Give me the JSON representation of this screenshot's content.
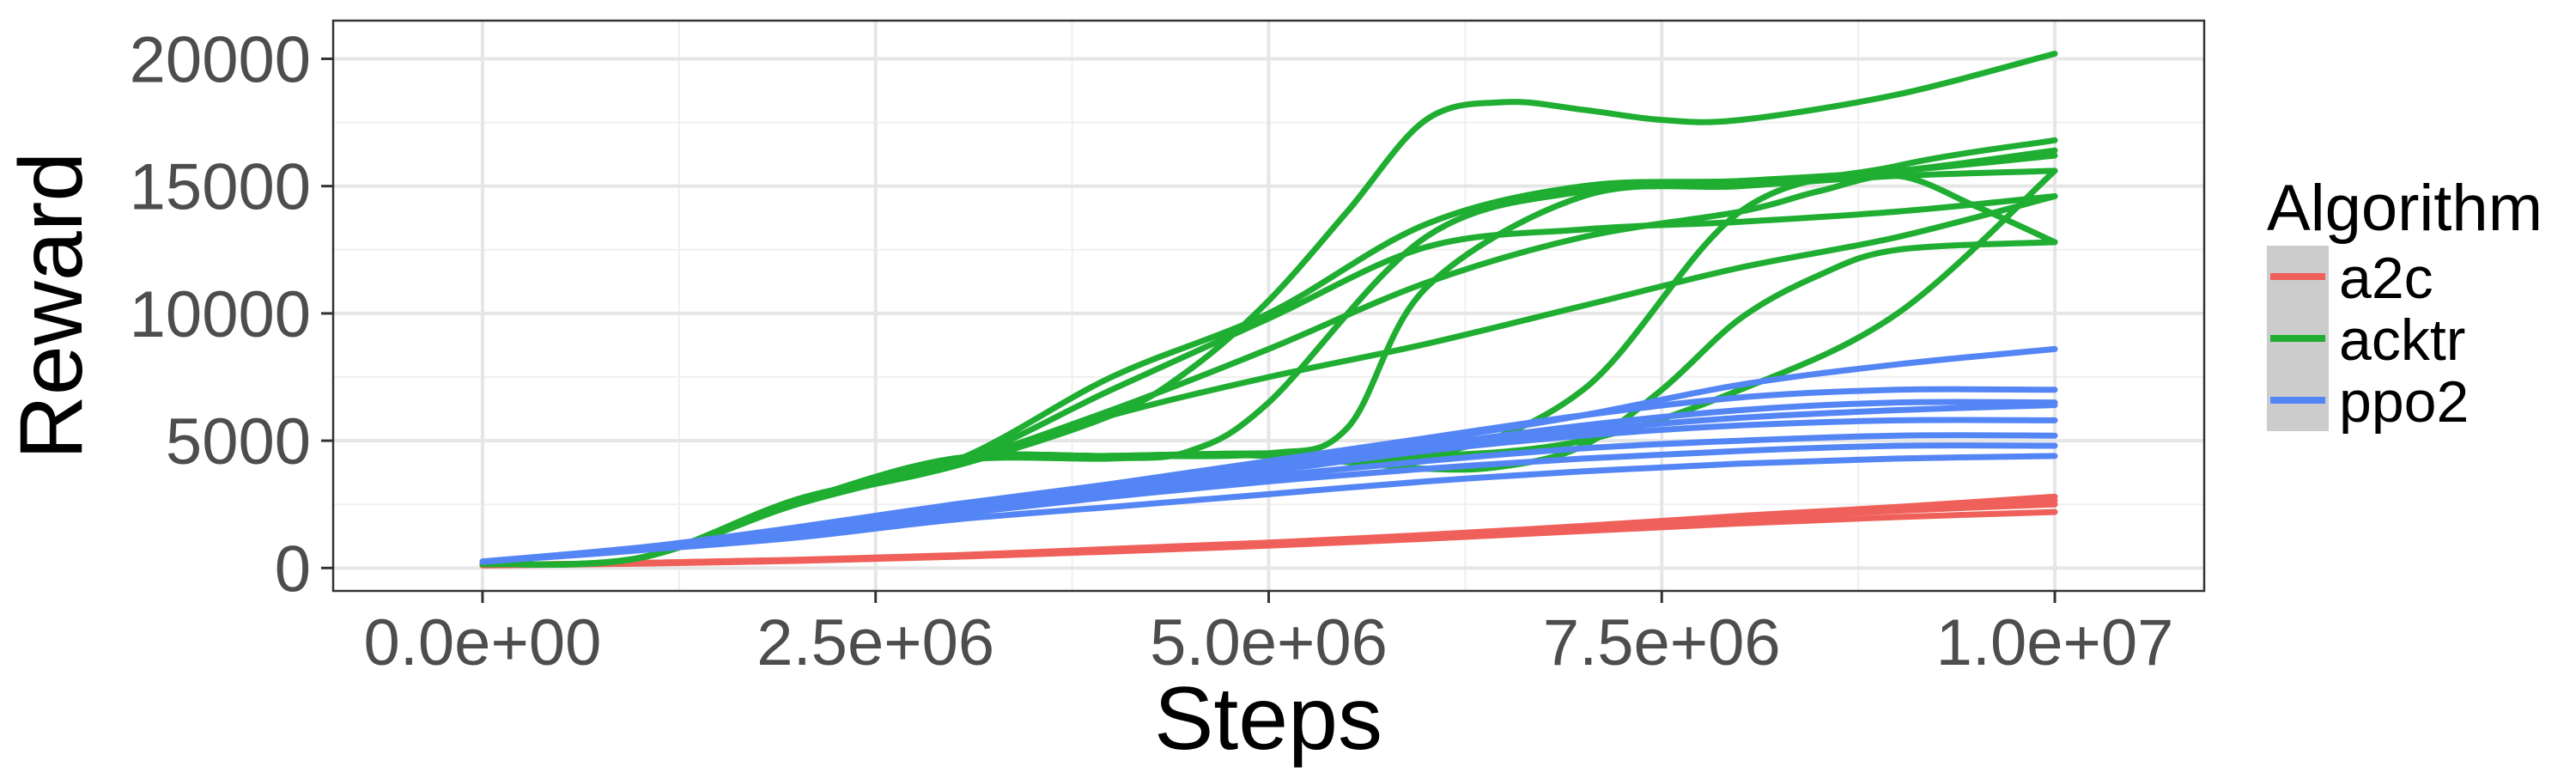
{
  "chart_data": {
    "type": "line",
    "title": "",
    "xlabel": "Steps",
    "ylabel": "Reward",
    "xlim": [
      -950000,
      10950000
    ],
    "ylim": [
      -900,
      21500
    ],
    "x_ticks": [
      0,
      2500000,
      5000000,
      7500000,
      10000000
    ],
    "x_tick_labels": [
      "0.0e+00",
      "2.5e+06",
      "5.0e+06",
      "7.5e+06",
      "1.0e+07"
    ],
    "y_ticks": [
      0,
      5000,
      10000,
      15000,
      20000
    ],
    "y_tick_labels": [
      "0",
      "5000",
      "10000",
      "15000",
      "20000"
    ],
    "grid": true,
    "legend": {
      "title": "Algorithm",
      "position": "right",
      "entries": [
        "a2c",
        "acktr",
        "ppo2"
      ]
    },
    "colors": {
      "a2c": "#f0605a",
      "acktr": "#1fae31",
      "ppo2": "#5485f5"
    },
    "series": [
      {
        "algorithm": "a2c",
        "x": [
          0,
          1000000,
          2000000,
          3000000,
          4000000,
          5000000,
          6000000,
          7000000,
          8000000,
          9000000,
          10000000
        ],
        "y": [
          120,
          200,
          320,
          500,
          750,
          1000,
          1300,
          1650,
          2050,
          2400,
          2800
        ]
      },
      {
        "algorithm": "a2c",
        "x": [
          0,
          1000000,
          2000000,
          3000000,
          4000000,
          5000000,
          6000000,
          7000000,
          8000000,
          9000000,
          10000000
        ],
        "y": [
          100,
          170,
          280,
          440,
          650,
          880,
          1150,
          1450,
          1750,
          2000,
          2200
        ]
      },
      {
        "algorithm": "a2c",
        "x": [
          0,
          1000000,
          2000000,
          3000000,
          4000000,
          5000000,
          6000000,
          7000000,
          8000000,
          9000000,
          10000000
        ],
        "y": [
          110,
          190,
          300,
          470,
          700,
          950,
          1250,
          1600,
          1950,
          2250,
          2500
        ]
      },
      {
        "algorithm": "a2c",
        "x": [
          0,
          1000000,
          2000000,
          3000000,
          4000000,
          5000000,
          6000000,
          7000000,
          8000000,
          9000000,
          10000000
        ],
        "y": [
          115,
          195,
          310,
          480,
          720,
          980,
          1280,
          1620,
          1990,
          2320,
          2650
        ]
      },
      {
        "algorithm": "acktr",
        "x": [
          0,
          1000000,
          2000000,
          3000000,
          4000000,
          4500000,
          5000000,
          5500000,
          6000000,
          6500000,
          7000000,
          7500000,
          8000000,
          9000000,
          10000000
        ],
        "y": [
          150,
          400,
          2600,
          4000,
          6000,
          7800,
          10500,
          14000,
          17600,
          18300,
          18000,
          17600,
          17600,
          18600,
          20200
        ]
      },
      {
        "algorithm": "acktr",
        "x": [
          0,
          1000000,
          2000000,
          3000000,
          4000000,
          5000000,
          6000000,
          7000000,
          8000000,
          9000000,
          10000000
        ],
        "y": [
          150,
          400,
          2700,
          4200,
          7500,
          10000,
          13500,
          15000,
          15200,
          15600,
          16200
        ]
      },
      {
        "algorithm": "acktr",
        "x": [
          0,
          1000000,
          2000000,
          3000000,
          4000000,
          5000000,
          6000000,
          7000000,
          8000000,
          9000000,
          10000000
        ],
        "y": [
          150,
          400,
          2600,
          4100,
          7000,
          9800,
          12600,
          13300,
          13600,
          14000,
          14600
        ]
      },
      {
        "algorithm": "acktr",
        "x": [
          0,
          1000000,
          2000000,
          3000000,
          4000000,
          4500000,
          5000000,
          6000000,
          7000000,
          8000000,
          9000000,
          10000000
        ],
        "y": [
          150,
          400,
          2600,
          4200,
          4300,
          4600,
          6500,
          13000,
          14800,
          15200,
          15600,
          16400
        ]
      },
      {
        "algorithm": "acktr",
        "x": [
          0,
          1000000,
          2000000,
          3000000,
          4000000,
          5000000,
          5500000,
          6000000,
          7000000,
          8000000,
          9000000,
          10000000
        ],
        "y": [
          150,
          400,
          2600,
          4300,
          4400,
          4500,
          5500,
          11000,
          14600,
          15000,
          15400,
          15600
        ]
      },
      {
        "algorithm": "acktr",
        "x": [
          0,
          1000000,
          2000000,
          3000000,
          4000000,
          5000000,
          6000000,
          7000000,
          8000000,
          9000000,
          10000000
        ],
        "y": [
          150,
          400,
          2600,
          4300,
          4400,
          4500,
          4400,
          7000,
          14000,
          15800,
          16800
        ]
      },
      {
        "algorithm": "acktr",
        "x": [
          0,
          1000000,
          2000000,
          3000000,
          4000000,
          5000000,
          6000000,
          6500000,
          7000000,
          7500000,
          8000000,
          8500000,
          9000000,
          10000000
        ],
        "y": [
          150,
          400,
          2600,
          4300,
          4400,
          4400,
          3900,
          4000,
          4800,
          7000,
          9800,
          11500,
          12500,
          12800
        ]
      },
      {
        "algorithm": "acktr",
        "x": [
          0,
          1000000,
          2000000,
          3000000,
          4000000,
          5000000,
          6000000,
          7000000,
          8000000,
          9000000,
          10000000
        ],
        "y": [
          150,
          400,
          2600,
          4200,
          4400,
          4500,
          4400,
          5000,
          7000,
          10000,
          15600
        ]
      },
      {
        "algorithm": "acktr",
        "x": [
          0,
          1000000,
          2000000,
          3000000,
          4000000,
          5000000,
          6000000,
          7000000,
          8000000,
          9000000,
          10000000
        ],
        "y": [
          150,
          400,
          2500,
          4100,
          6000,
          7500,
          8800,
          10300,
          11800,
          13000,
          14600
        ]
      },
      {
        "algorithm": "acktr",
        "x": [
          0,
          1000000,
          2000000,
          3000000,
          4000000,
          5000000,
          6000000,
          7000000,
          8000000,
          8500000,
          9000000,
          9500000,
          10000000
        ],
        "y": [
          150,
          400,
          2600,
          4100,
          6200,
          8600,
          11200,
          13000,
          14000,
          14800,
          15400,
          14200,
          12800
        ]
      },
      {
        "algorithm": "ppo2",
        "x": [
          0,
          1000000,
          2000000,
          3000000,
          4000000,
          5000000,
          6000000,
          7000000,
          8000000,
          9000000,
          10000000
        ],
        "y": [
          250,
          800,
          1600,
          2500,
          3300,
          4100,
          5000,
          6000,
          7200,
          8000,
          8600
        ]
      },
      {
        "algorithm": "ppo2",
        "x": [
          0,
          1000000,
          2000000,
          3000000,
          4000000,
          5000000,
          6000000,
          7000000,
          8000000,
          9000000,
          10000000
        ],
        "y": [
          250,
          800,
          1500,
          2400,
          3300,
          4200,
          5100,
          6000,
          6700,
          7000,
          7000
        ]
      },
      {
        "algorithm": "ppo2",
        "x": [
          0,
          1000000,
          2000000,
          3000000,
          4000000,
          5000000,
          6000000,
          7000000,
          8000000,
          9000000,
          10000000
        ],
        "y": [
          250,
          800,
          1500,
          2400,
          3200,
          4000,
          4800,
          5600,
          6200,
          6500,
          6500
        ]
      },
      {
        "algorithm": "ppo2",
        "x": [
          0,
          1000000,
          2000000,
          3000000,
          4000000,
          5000000,
          6000000,
          7000000,
          8000000,
          9000000,
          10000000
        ],
        "y": [
          250,
          750,
          1400,
          2300,
          3000,
          3800,
          4600,
          5200,
          5600,
          5800,
          5800
        ]
      },
      {
        "algorithm": "ppo2",
        "x": [
          0,
          1000000,
          2000000,
          3000000,
          4000000,
          5000000,
          6000000,
          7000000,
          8000000,
          9000000,
          10000000
        ],
        "y": [
          250,
          750,
          1400,
          2200,
          2900,
          3600,
          4200,
          4700,
          5000,
          5200,
          5200
        ]
      },
      {
        "algorithm": "ppo2",
        "x": [
          0,
          1000000,
          2000000,
          3000000,
          4000000,
          5000000,
          6000000,
          7000000,
          8000000,
          9000000,
          10000000
        ],
        "y": [
          250,
          700,
          1300,
          2100,
          2800,
          3400,
          3900,
          4300,
          4600,
          4800,
          4800
        ]
      },
      {
        "algorithm": "ppo2",
        "x": [
          0,
          1000000,
          2000000,
          3000000,
          4000000,
          5000000,
          6000000,
          7000000,
          8000000,
          9000000,
          10000000
        ],
        "y": [
          250,
          700,
          1200,
          1900,
          2400,
          2900,
          3400,
          3800,
          4100,
          4300,
          4400
        ]
      },
      {
        "algorithm": "ppo2",
        "x": [
          0,
          1000000,
          2000000,
          3000000,
          4000000,
          5000000,
          6000000,
          7000000,
          8000000,
          9000000,
          10000000
        ],
        "y": [
          250,
          750,
          1400,
          2300,
          3100,
          3900,
          4700,
          5400,
          5900,
          6200,
          6400
        ]
      }
    ]
  }
}
